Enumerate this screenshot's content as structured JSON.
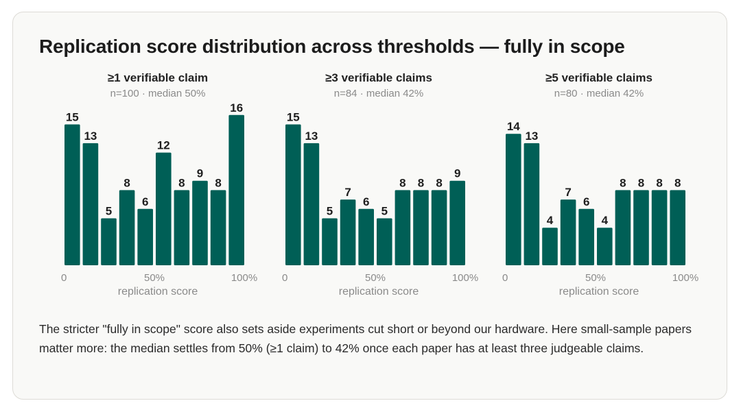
{
  "title": "Replication score distribution across thresholds — fully in scope",
  "caption": "The stricter \"fully in scope\" score also sets aside experiments cut short or beyond our hardware. Here small-sample papers matter more: the median settles from 50% (≥1 claim) to 42% once each paper has at least three judgeable claims.",
  "colors": {
    "bar": "#005f56",
    "card_bg": "#f9f9f7"
  },
  "chart_data": [
    {
      "type": "bar",
      "title": "≥1 verifiable claim",
      "subtitle": "n=100 · median 50%",
      "xlabel": "replication score",
      "ylabel": "",
      "x_ticks": [
        "0",
        "50%",
        "100%"
      ],
      "categories": [
        "0%",
        "10%",
        "20%",
        "30%",
        "40%",
        "50%",
        "60%",
        "70%",
        "80%",
        "90%"
      ],
      "values": [
        15,
        13,
        5,
        8,
        6,
        12,
        8,
        9,
        8,
        16
      ],
      "ylim": [
        0,
        16
      ],
      "grid": false
    },
    {
      "type": "bar",
      "title": "≥3 verifiable claims",
      "subtitle": "n=84 · median 42%",
      "xlabel": "replication score",
      "ylabel": "",
      "x_ticks": [
        "0",
        "50%",
        "100%"
      ],
      "categories": [
        "0%",
        "10%",
        "20%",
        "30%",
        "40%",
        "50%",
        "60%",
        "70%",
        "80%",
        "90%"
      ],
      "values": [
        15,
        13,
        5,
        7,
        6,
        5,
        8,
        8,
        8,
        9
      ],
      "ylim": [
        0,
        16
      ],
      "grid": false
    },
    {
      "type": "bar",
      "title": "≥5 verifiable claims",
      "subtitle": "n=80 · median 42%",
      "xlabel": "replication score",
      "ylabel": "",
      "x_ticks": [
        "0",
        "50%",
        "100%"
      ],
      "categories": [
        "0%",
        "10%",
        "20%",
        "30%",
        "40%",
        "50%",
        "60%",
        "70%",
        "80%",
        "90%"
      ],
      "values": [
        14,
        13,
        4,
        7,
        6,
        4,
        8,
        8,
        8,
        8
      ],
      "ylim": [
        0,
        16
      ],
      "grid": false
    }
  ]
}
